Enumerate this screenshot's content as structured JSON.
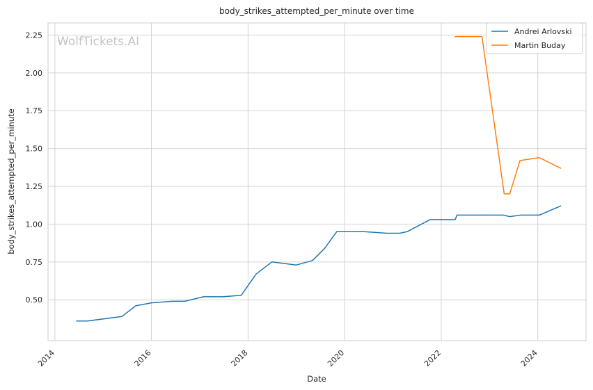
{
  "chart_data": {
    "type": "line",
    "title": "body_strikes_attempted_per_minute over time",
    "xlabel": "Date",
    "ylabel": "body_strikes_attempted_per_minute",
    "watermark": "WolfTickets.AI",
    "xlim": [
      "2013-11-10",
      "2024-12-31"
    ],
    "ylim": [
      0.23,
      2.33
    ],
    "x_ticks": [
      "2014",
      "2016",
      "2018",
      "2020",
      "2022",
      "2024"
    ],
    "y_ticks": [
      "0.50",
      "0.75",
      "1.00",
      "1.25",
      "1.50",
      "1.75",
      "2.00",
      "2.25"
    ],
    "grid": true,
    "legend_position": "top-right",
    "series": [
      {
        "name": "Andrei Arlovski",
        "color": "#1f77b4",
        "points": [
          [
            "2014-06-14",
            0.36
          ],
          [
            "2014-09-06",
            0.36
          ],
          [
            "2015-05-23",
            0.39
          ],
          [
            "2015-09-05",
            0.46
          ],
          [
            "2016-01-02",
            0.48
          ],
          [
            "2016-06-04",
            0.49
          ],
          [
            "2016-09-10",
            0.49
          ],
          [
            "2017-01-28",
            0.52
          ],
          [
            "2017-06-25",
            0.52
          ],
          [
            "2017-11-11",
            0.53
          ],
          [
            "2018-03-03",
            0.67
          ],
          [
            "2018-06-30",
            0.75
          ],
          [
            "2019-01-01",
            0.73
          ],
          [
            "2019-05-04",
            0.76
          ],
          [
            "2019-08-03",
            0.84
          ],
          [
            "2019-11-02",
            0.95
          ],
          [
            "2020-05-30",
            0.95
          ],
          [
            "2020-11-14",
            0.94
          ],
          [
            "2021-02-20",
            0.94
          ],
          [
            "2021-04-17",
            0.95
          ],
          [
            "2021-10-09",
            1.03
          ],
          [
            "2022-04-16",
            1.03
          ],
          [
            "2022-04-30",
            1.06
          ],
          [
            "2022-08-20",
            1.06
          ],
          [
            "2022-10-29",
            1.06
          ],
          [
            "2023-04-15",
            1.06
          ],
          [
            "2023-06-03",
            1.05
          ],
          [
            "2023-08-26",
            1.06
          ],
          [
            "2024-01-13",
            1.06
          ],
          [
            "2024-06-22",
            1.12
          ]
        ]
      },
      {
        "name": "Martin Buday",
        "color": "#ff7f0e",
        "points": [
          [
            "2022-04-16",
            2.24
          ],
          [
            "2022-11-05",
            2.24
          ],
          [
            "2023-04-22",
            1.2
          ],
          [
            "2023-06-03",
            1.2
          ],
          [
            "2023-08-19",
            1.42
          ],
          [
            "2024-01-13",
            1.44
          ],
          [
            "2024-06-22",
            1.37
          ]
        ]
      }
    ]
  }
}
